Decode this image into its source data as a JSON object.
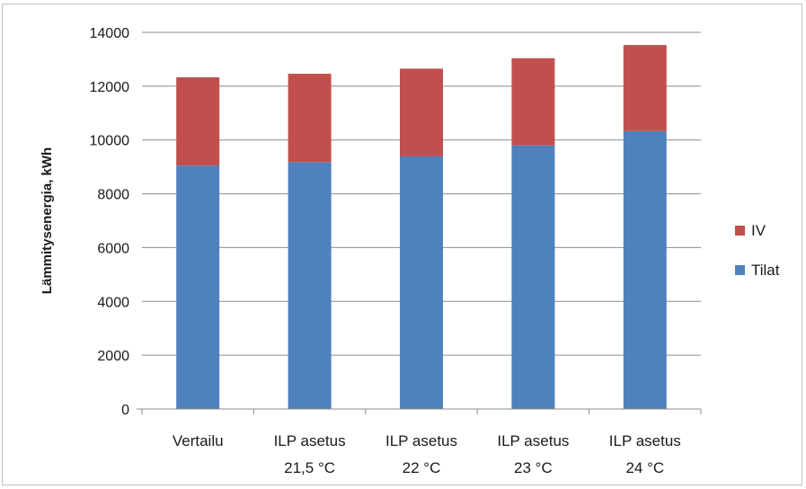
{
  "chart_data": {
    "type": "bar",
    "stacked": true,
    "categories": [
      [
        "Vertailu"
      ],
      [
        "ILP asetus",
        "21,5 °C"
      ],
      [
        "ILP asetus",
        "22 °C"
      ],
      [
        "ILP asetus",
        "23 °C"
      ],
      [
        "ILP asetus",
        "24 °C"
      ]
    ],
    "series": [
      {
        "name": "Tilat",
        "color": "#4f81bd",
        "values": [
          9050,
          9180,
          9390,
          9800,
          10330
        ]
      },
      {
        "name": "IV",
        "color": "#c0504d",
        "values": [
          3280,
          3280,
          3260,
          3240,
          3200
        ]
      }
    ],
    "xlabel": "",
    "ylabel": "Lämmitysenergia, kWh",
    "ylim": [
      0,
      14000
    ],
    "yticks": [
      0,
      2000,
      4000,
      6000,
      8000,
      10000,
      12000,
      14000
    ],
    "grid": true,
    "legend_position": "right",
    "legend_order": [
      "IV",
      "Tilat"
    ]
  }
}
